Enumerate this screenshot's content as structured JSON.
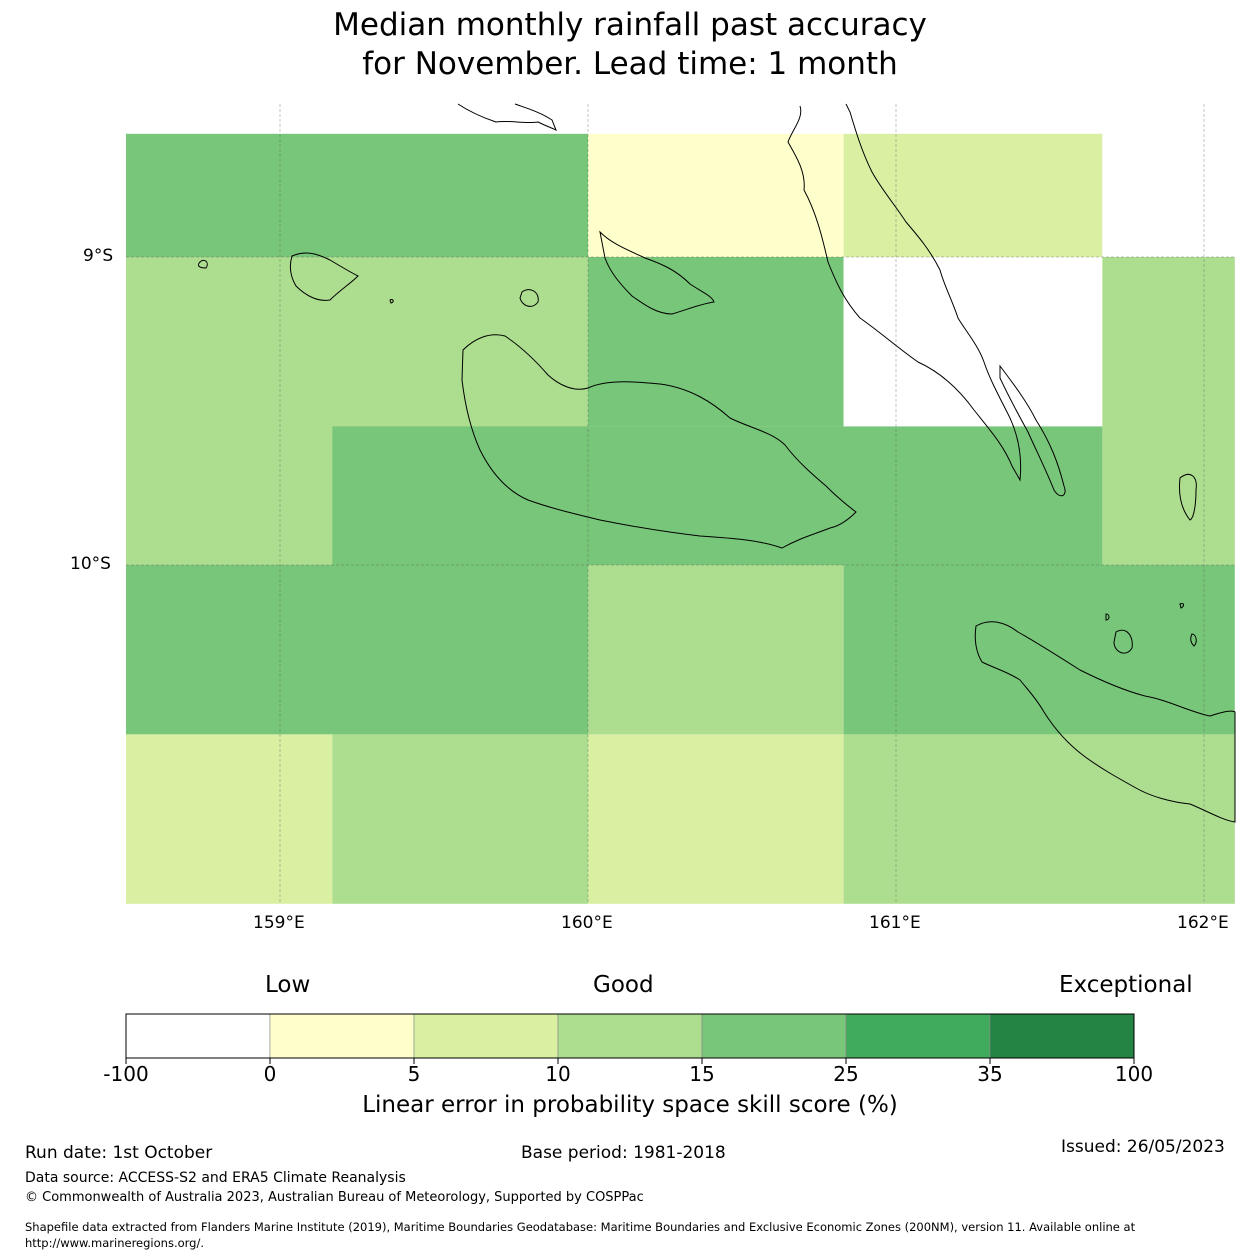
{
  "title_line1": "Median monthly rainfall past accuracy",
  "title_line2": "for November. Lead time: 1 month",
  "axes": {
    "lat_labels": [
      "9°S",
      "10°S"
    ],
    "lon_labels": [
      "159°E",
      "160°E",
      "161°E",
      "162°E"
    ]
  },
  "map_data": {
    "type": "gridded-skill-map",
    "units": "%",
    "cells_note": "colour class per region, classes refer to colorbar.bins index",
    "cells": [
      {
        "lon": [
          158.5,
          160.0
        ],
        "lat": [
          -8.6,
          -9.0
        ],
        "class": 4
      },
      {
        "lon": [
          160.0,
          160.83
        ],
        "lat": [
          -8.6,
          -9.0
        ],
        "class": 1
      },
      {
        "lon": [
          160.83,
          161.67
        ],
        "lat": [
          -8.6,
          -9.0
        ],
        "class": 2
      },
      {
        "lon": [
          161.67,
          162.1
        ],
        "lat": [
          -8.6,
          -9.0
        ],
        "class": 0
      },
      {
        "lon": [
          158.5,
          160.0
        ],
        "lat": [
          -9.0,
          -10.0
        ],
        "class": 3
      },
      {
        "lon": [
          160.0,
          160.83
        ],
        "lat": [
          -9.0,
          -9.55
        ],
        "class": 4
      },
      {
        "lon": [
          160.83,
          161.67
        ],
        "lat": [
          -9.0,
          -9.55
        ],
        "class": 0
      },
      {
        "lon": [
          161.67,
          162.1
        ],
        "lat": [
          -9.0,
          -10.0
        ],
        "class": 3
      },
      {
        "lon": [
          159.17,
          161.67
        ],
        "lat": [
          -9.55,
          -10.0
        ],
        "class": 4
      },
      {
        "lon": [
          158.5,
          160.0
        ],
        "lat": [
          -10.0,
          -10.55
        ],
        "class": 4
      },
      {
        "lon": [
          160.0,
          160.83
        ],
        "lat": [
          -10.0,
          -10.55
        ],
        "class": 3
      },
      {
        "lon": [
          160.83,
          162.1
        ],
        "lat": [
          -10.0,
          -10.55
        ],
        "class": 4
      },
      {
        "lon": [
          158.5,
          159.17
        ],
        "lat": [
          -10.55,
          -11.1
        ],
        "class": 2
      },
      {
        "lon": [
          159.17,
          160.0
        ],
        "lat": [
          -10.55,
          -11.1
        ],
        "class": 3
      },
      {
        "lon": [
          160.0,
          160.83
        ],
        "lat": [
          -10.55,
          -11.1
        ],
        "class": 2
      },
      {
        "lon": [
          160.83,
          162.1
        ],
        "lat": [
          -10.55,
          -11.1
        ],
        "class": 3
      }
    ]
  },
  "colorbar": {
    "category_labels": {
      "low": "Low",
      "good": "Good",
      "exceptional": "Exceptional"
    },
    "ticks": [
      "-100",
      "0",
      "5",
      "10",
      "15",
      "25",
      "35",
      "100"
    ],
    "bins": [
      {
        "from": -100,
        "to": 0,
        "color": "#ffffff"
      },
      {
        "from": 0,
        "to": 5,
        "color": "#ffffcc"
      },
      {
        "from": 5,
        "to": 10,
        "color": "#d9f0a3"
      },
      {
        "from": 10,
        "to": 15,
        "color": "#addd8e"
      },
      {
        "from": 15,
        "to": 25,
        "color": "#78c679"
      },
      {
        "from": 25,
        "to": 35,
        "color": "#41ab5d"
      },
      {
        "from": 35,
        "to": 100,
        "color": "#238443"
      }
    ],
    "title": "Linear error in probability space skill score (%)"
  },
  "footer": {
    "run_date": "Run date: 1st October",
    "base_period": "Base period: 1981-2018",
    "issued": "Issued: 26/05/2023",
    "data_source": "Data source: ACCESS-S2 and ERA5 Climate Reanalysis",
    "copyright": "© Commonwealth of Australia 2023, Australian Bureau of Meteorology, Supported by COSPPac",
    "shapefile_line1": "Shapefile data extracted from Flanders Marine Institute (2019), Maritime Boundaries Geodatabase: Maritime Boundaries and Exclusive Economic Zones (200NM), version 11. Available online at",
    "shapefile_line2": "http://www.marineregions.org/."
  }
}
